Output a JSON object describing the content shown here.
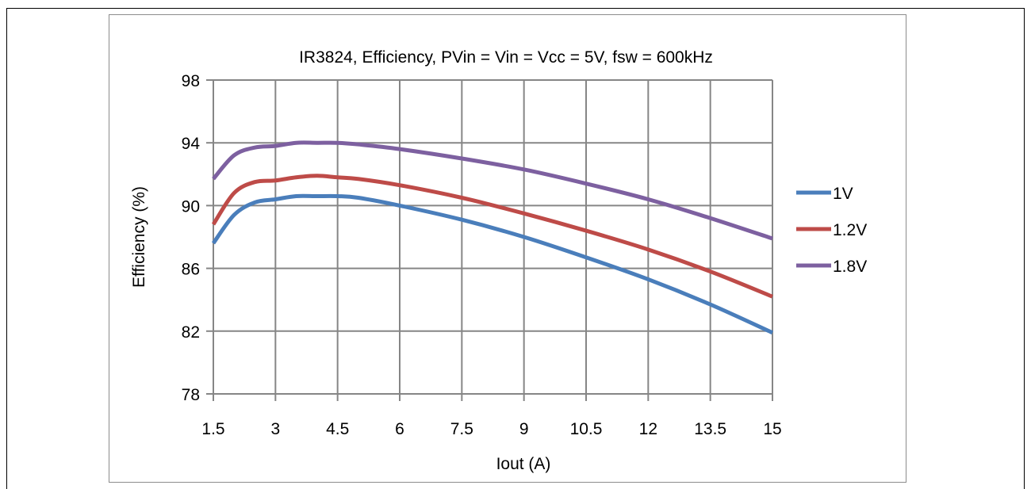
{
  "chart_data": {
    "type": "line",
    "title": "IR3824, Efficiency,  PVin = Vin = Vcc = 5V, fsw = 600kHz",
    "xlabel": "Iout (A)",
    "ylabel": "Efficiency (%)",
    "xlim": [
      1.5,
      15
    ],
    "ylim": [
      78,
      98
    ],
    "xticks": [
      "1.5",
      "3",
      "4.5",
      "6",
      "7.5",
      "9",
      "10.5",
      "12",
      "13.5",
      "15"
    ],
    "yticks": [
      "78",
      "82",
      "86",
      "90",
      "94",
      "98"
    ],
    "grid": true,
    "legend_position": "right",
    "series": [
      {
        "name": "1V",
        "color": "#4a7ebb",
        "x": [
          1.5,
          2,
          2.5,
          3,
          3.5,
          4,
          4.5,
          5,
          6,
          7.5,
          9,
          10.5,
          12,
          13.5,
          15
        ],
        "y": [
          87.6,
          89.4,
          90.2,
          90.4,
          90.6,
          90.6,
          90.6,
          90.5,
          90.0,
          89.1,
          88.0,
          86.7,
          85.3,
          83.7,
          81.9
        ]
      },
      {
        "name": "1.2V",
        "color": "#be4b48",
        "x": [
          1.5,
          2,
          2.5,
          3,
          3.5,
          4,
          4.5,
          5,
          6,
          7.5,
          9,
          10.5,
          12,
          13.5,
          15
        ],
        "y": [
          88.8,
          90.8,
          91.5,
          91.6,
          91.8,
          91.9,
          91.8,
          91.7,
          91.3,
          90.5,
          89.5,
          88.4,
          87.2,
          85.8,
          84.2
        ]
      },
      {
        "name": "1.8V",
        "color": "#7d60a0",
        "x": [
          1.5,
          2,
          2.5,
          3,
          3.5,
          4,
          4.5,
          5,
          6,
          7.5,
          9,
          10.5,
          12,
          13.5,
          15
        ],
        "y": [
          91.7,
          93.2,
          93.7,
          93.8,
          94.0,
          94.0,
          94.0,
          93.9,
          93.6,
          93.0,
          92.3,
          91.4,
          90.4,
          89.2,
          87.9
        ]
      }
    ]
  }
}
